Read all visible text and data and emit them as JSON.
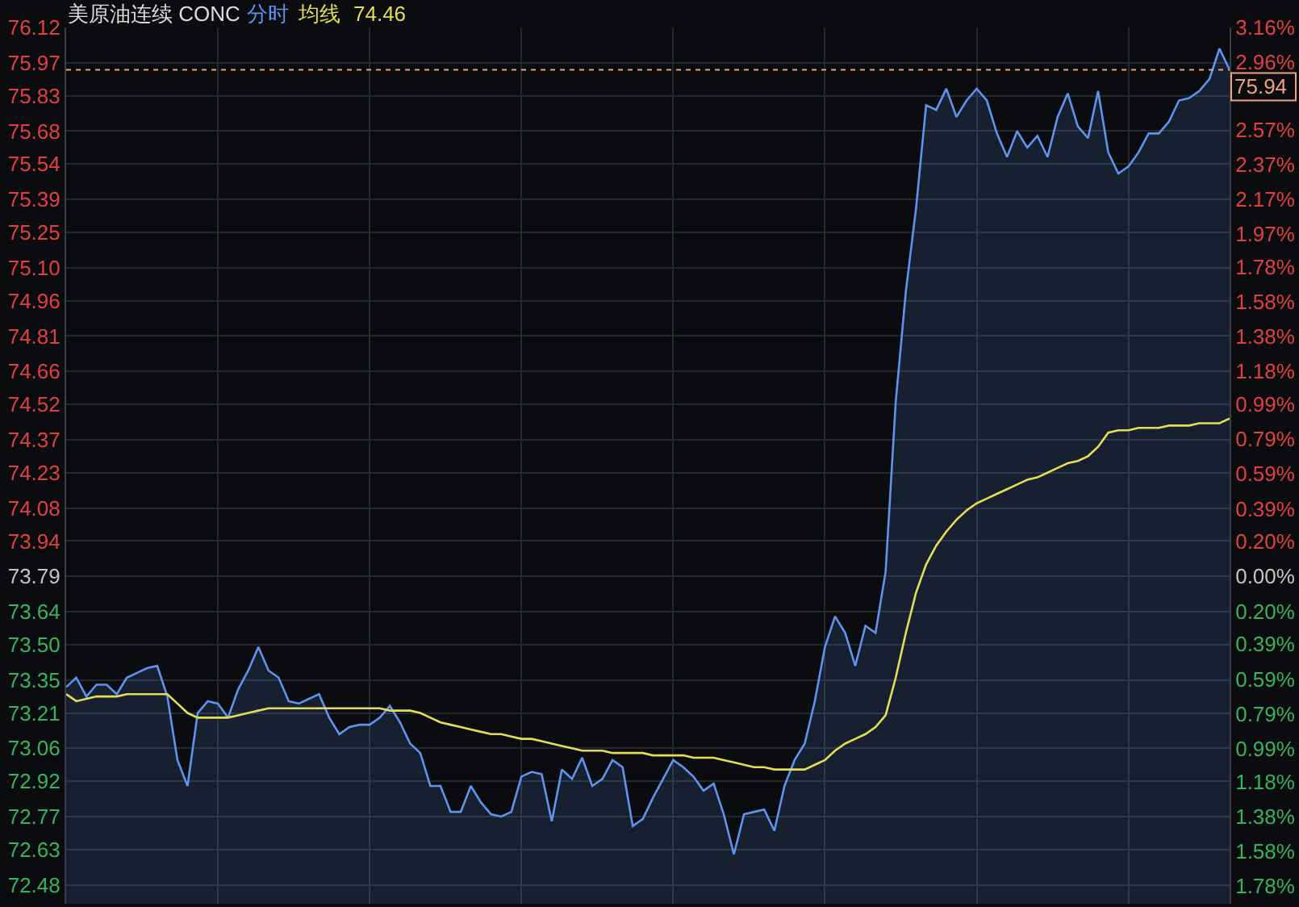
{
  "chart_data": {
    "type": "area",
    "title": "美原油连续 CONC",
    "categories": [
      null,
      null,
      null,
      null,
      null,
      null,
      null,
      null,
      null,
      null,
      null,
      null,
      null,
      null,
      null,
      null,
      null,
      null,
      null,
      null,
      null,
      null,
      null,
      null,
      null,
      null,
      null,
      null,
      null,
      null,
      null,
      null,
      null,
      null,
      null,
      null,
      null,
      null,
      null,
      null,
      null,
      null,
      null,
      null,
      null,
      null,
      null,
      null,
      null,
      null,
      null,
      null,
      null,
      null,
      null,
      null,
      null,
      null,
      null,
      null,
      null,
      null,
      null,
      null,
      null,
      null,
      null,
      null,
      null,
      null,
      null,
      null,
      null,
      null,
      null,
      null,
      null,
      null,
      null,
      null,
      null,
      null,
      null,
      null,
      null,
      null,
      null,
      null,
      null,
      null,
      null,
      null,
      null,
      null,
      null,
      null,
      null,
      null,
      null,
      null,
      null,
      null,
      null,
      null,
      null,
      null,
      null,
      null,
      null,
      null,
      null,
      null,
      null,
      null,
      null,
      null
    ],
    "series": [
      {
        "name": "分时",
        "color": "#5f93ee",
        "values": [
          73.32,
          73.36,
          73.28,
          73.33,
          73.33,
          73.29,
          73.36,
          73.38,
          73.4,
          73.41,
          73.28,
          73.01,
          72.9,
          73.21,
          73.26,
          73.25,
          73.19,
          73.31,
          73.39,
          73.49,
          73.39,
          73.36,
          73.26,
          73.25,
          73.27,
          73.29,
          73.19,
          73.12,
          73.15,
          73.16,
          73.16,
          73.19,
          73.24,
          73.17,
          73.08,
          73.04,
          72.9,
          72.9,
          72.79,
          72.79,
          72.9,
          72.83,
          72.78,
          72.77,
          72.79,
          72.94,
          72.96,
          72.95,
          72.75,
          72.97,
          72.93,
          73.02,
          72.9,
          72.93,
          73.01,
          72.98,
          72.73,
          72.76,
          72.85,
          72.93,
          73.01,
          72.98,
          72.94,
          72.88,
          72.91,
          72.78,
          72.61,
          72.78,
          72.79,
          72.8,
          72.71,
          72.9,
          73.01,
          73.08,
          73.26,
          73.49,
          73.62,
          73.55,
          73.41,
          73.58,
          73.55,
          73.81,
          74.53,
          75.0,
          75.35,
          75.79,
          75.77,
          75.86,
          75.74,
          75.81,
          75.86,
          75.81,
          75.67,
          75.57,
          75.68,
          75.61,
          75.66,
          75.57,
          75.74,
          75.84,
          75.7,
          75.65,
          75.85,
          75.59,
          75.5,
          75.53,
          75.59,
          75.67,
          75.67,
          75.72,
          75.81,
          75.82,
          75.85,
          75.9,
          76.03,
          75.94
        ]
      },
      {
        "name": "均线",
        "type": "line",
        "color": "#e4de52",
        "values": [
          73.29,
          73.26,
          73.27,
          73.28,
          73.28,
          73.28,
          73.29,
          73.29,
          73.29,
          73.29,
          73.29,
          73.25,
          73.21,
          73.19,
          73.19,
          73.19,
          73.19,
          73.2,
          73.21,
          73.22,
          73.23,
          73.23,
          73.23,
          73.23,
          73.23,
          73.23,
          73.23,
          73.23,
          73.23,
          73.23,
          73.23,
          73.23,
          73.22,
          73.22,
          73.22,
          73.21,
          73.19,
          73.17,
          73.16,
          73.15,
          73.14,
          73.13,
          73.12,
          73.12,
          73.11,
          73.1,
          73.1,
          73.09,
          73.08,
          73.07,
          73.06,
          73.05,
          73.05,
          73.05,
          73.04,
          73.04,
          73.04,
          73.04,
          73.03,
          73.03,
          73.03,
          73.03,
          73.02,
          73.02,
          73.02,
          73.01,
          73.0,
          72.99,
          72.98,
          72.98,
          72.97,
          72.97,
          72.97,
          72.97,
          72.99,
          73.01,
          73.05,
          73.08,
          73.1,
          73.12,
          73.15,
          73.2,
          73.36,
          73.55,
          73.72,
          73.84,
          73.92,
          73.98,
          74.03,
          74.07,
          74.1,
          74.12,
          74.14,
          74.16,
          74.18,
          74.2,
          74.21,
          74.23,
          74.25,
          74.27,
          74.28,
          74.3,
          74.34,
          74.4,
          74.41,
          74.41,
          74.42,
          74.42,
          74.42,
          74.43,
          74.43,
          74.43,
          74.44,
          74.44,
          74.44,
          74.46
        ]
      }
    ],
    "ylim": [
      72.4,
      76.12
    ],
    "yticks": [
      76.12,
      75.97,
      75.83,
      75.68,
      75.54,
      75.39,
      75.25,
      {
        "value": 75.1,
        "label": "75.10"
      },
      74.96,
      74.81,
      74.66,
      74.52,
      74.37,
      74.23,
      74.08,
      73.94,
      73.79,
      73.64,
      {
        "value": 73.5,
        "label": "73.50"
      },
      73.35,
      73.21,
      73.06,
      72.92,
      72.77,
      72.63,
      72.48
    ],
    "y2lim": [
      -1.884,
      3.16
    ],
    "y2ticks": [
      {
        "value": 3.16,
        "label": "3.16%"
      },
      {
        "value": 2.96,
        "label": "2.96%"
      },
      {
        "value": 2.57,
        "label": "2.57%"
      },
      {
        "value": 2.37,
        "label": "2.37%"
      },
      {
        "value": 2.17,
        "label": "2.17%"
      },
      {
        "value": 1.97,
        "label": "1.97%"
      },
      {
        "value": 1.78,
        "label": "1.78%"
      },
      {
        "value": 1.58,
        "label": "1.58%"
      },
      {
        "value": 1.38,
        "label": "1.38%"
      },
      {
        "value": 1.18,
        "label": "1.18%"
      },
      {
        "value": 0.99,
        "label": "0.99%"
      },
      {
        "value": 0.79,
        "label": "0.79%"
      },
      {
        "value": 0.59,
        "label": "0.59%"
      },
      {
        "value": 0.39,
        "label": "0.39%"
      },
      {
        "value": 0.2,
        "label": "0.20%"
      },
      {
        "value": 0,
        "label": "0.00%"
      },
      {
        "value": -0.2,
        "label": "0.20%"
      },
      {
        "value": -0.39,
        "label": "0.39%"
      },
      {
        "value": -0.59,
        "label": "0.59%"
      },
      {
        "value": -0.79,
        "label": "0.79%"
      },
      {
        "value": -0.99,
        "label": "0.99%"
      },
      {
        "value": -1.18,
        "label": "1.18%"
      },
      {
        "value": -1.38,
        "label": "1.38%"
      },
      {
        "value": -1.58,
        "label": "1.58%"
      },
      {
        "value": -1.78,
        "label": "1.78%"
      }
    ],
    "ref_lines": [
      {
        "axis": "y",
        "value": 75.94,
        "color": "#eda27c",
        "line_style": "dashed"
      }
    ],
    "annotations": [
      "74.46",
      "75.94"
    ],
    "grid": true,
    "legend": "top left"
  }
}
